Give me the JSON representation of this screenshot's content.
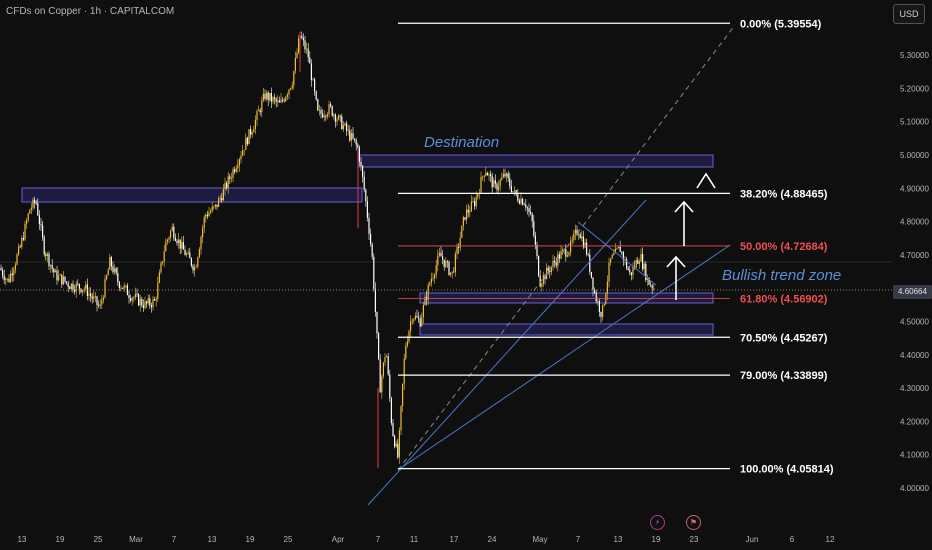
{
  "header": {
    "title": "CFDs on Copper · 1h · CAPITALCOM",
    "currency": "USD"
  },
  "annotations": {
    "destination": "Destination",
    "trend_zone": "Bullish trend zone"
  },
  "events": {
    "event1_icon": "lightning-icon",
    "event2_icon": "flag-icon"
  },
  "colors": {
    "background": "#0f0f0f",
    "candle_up": "#f0c030",
    "candle_down": "#ffffff",
    "trendline": "#4a78c8",
    "zone": "#3d3a8f",
    "fib_white": "#ffffff",
    "fib_red": "#f05050"
  },
  "chart_data": {
    "type": "candlestick",
    "title": "CFDs on Copper · 1h · CAPITALCOM",
    "y_ticks": [
      "5.30000",
      "5.20000",
      "5.10000",
      "5.00000",
      "4.90000",
      "4.80000",
      "4.70000",
      "4.60000",
      "4.50000",
      "4.40000",
      "4.30000",
      "4.20000",
      "4.10000",
      "4.00000"
    ],
    "x_ticks": [
      "13",
      "19",
      "25",
      "Mar",
      "7",
      "13",
      "19",
      "25",
      "Apr",
      "7",
      "11",
      "17",
      "24",
      "May",
      "7",
      "13",
      "19",
      "23",
      "Jun",
      "6",
      "12"
    ],
    "current_price": "4.60664",
    "ylim": [
      3.97,
      5.42
    ],
    "fib_levels": [
      {
        "label": "0.00% (5.39554)",
        "value": 5.39554,
        "color": "white"
      },
      {
        "label": "38.20% (4.88465)",
        "value": 4.88465,
        "color": "white"
      },
      {
        "label": "50.00% (4.72684)",
        "value": 4.72684,
        "color": "red"
      },
      {
        "label": "61.80% (4.56902)",
        "value": 4.56902,
        "color": "red"
      },
      {
        "label": "70.50% (4.45267)",
        "value": 4.45267,
        "color": "white"
      },
      {
        "label": "79.00% (4.33899)",
        "value": 4.33899,
        "color": "white"
      },
      {
        "label": "100.00% (4.05814)",
        "value": 4.05814,
        "color": "white"
      }
    ],
    "price_path": [
      [
        0,
        4.66
      ],
      [
        8,
        4.62
      ],
      [
        20,
        4.72
      ],
      [
        30,
        4.84
      ],
      [
        36,
        4.86
      ],
      [
        44,
        4.72
      ],
      [
        55,
        4.64
      ],
      [
        70,
        4.61
      ],
      [
        85,
        4.6
      ],
      [
        100,
        4.54
      ],
      [
        110,
        4.68
      ],
      [
        118,
        4.62
      ],
      [
        130,
        4.58
      ],
      [
        145,
        4.55
      ],
      [
        155,
        4.56
      ],
      [
        165,
        4.73
      ],
      [
        172,
        4.78
      ],
      [
        182,
        4.72
      ],
      [
        195,
        4.66
      ],
      [
        205,
        4.82
      ],
      [
        215,
        4.84
      ],
      [
        225,
        4.9
      ],
      [
        240,
        5.0
      ],
      [
        255,
        5.1
      ],
      [
        265,
        5.18
      ],
      [
        280,
        5.15
      ],
      [
        292,
        5.22
      ],
      [
        300,
        5.36
      ],
      [
        308,
        5.3
      ],
      [
        318,
        5.12
      ],
      [
        330,
        5.14
      ],
      [
        345,
        5.08
      ],
      [
        358,
        5.02
      ],
      [
        365,
        4.88
      ],
      [
        372,
        4.7
      ],
      [
        380,
        4.3
      ],
      [
        386,
        4.42
      ],
      [
        392,
        4.18
      ],
      [
        398,
        4.09
      ],
      [
        405,
        4.42
      ],
      [
        412,
        4.52
      ],
      [
        420,
        4.5
      ],
      [
        430,
        4.62
      ],
      [
        440,
        4.7
      ],
      [
        452,
        4.64
      ],
      [
        465,
        4.82
      ],
      [
        475,
        4.86
      ],
      [
        485,
        4.96
      ],
      [
        495,
        4.9
      ],
      [
        505,
        4.94
      ],
      [
        515,
        4.88
      ],
      [
        525,
        4.86
      ],
      [
        532,
        4.8
      ],
      [
        540,
        4.62
      ],
      [
        550,
        4.66
      ],
      [
        560,
        4.7
      ],
      [
        570,
        4.72
      ],
      [
        578,
        4.78
      ],
      [
        586,
        4.72
      ],
      [
        595,
        4.58
      ],
      [
        602,
        4.52
      ],
      [
        610,
        4.68
      ],
      [
        620,
        4.72
      ],
      [
        630,
        4.64
      ],
      [
        640,
        4.7
      ],
      [
        648,
        4.62
      ],
      [
        655,
        4.6
      ]
    ]
  }
}
